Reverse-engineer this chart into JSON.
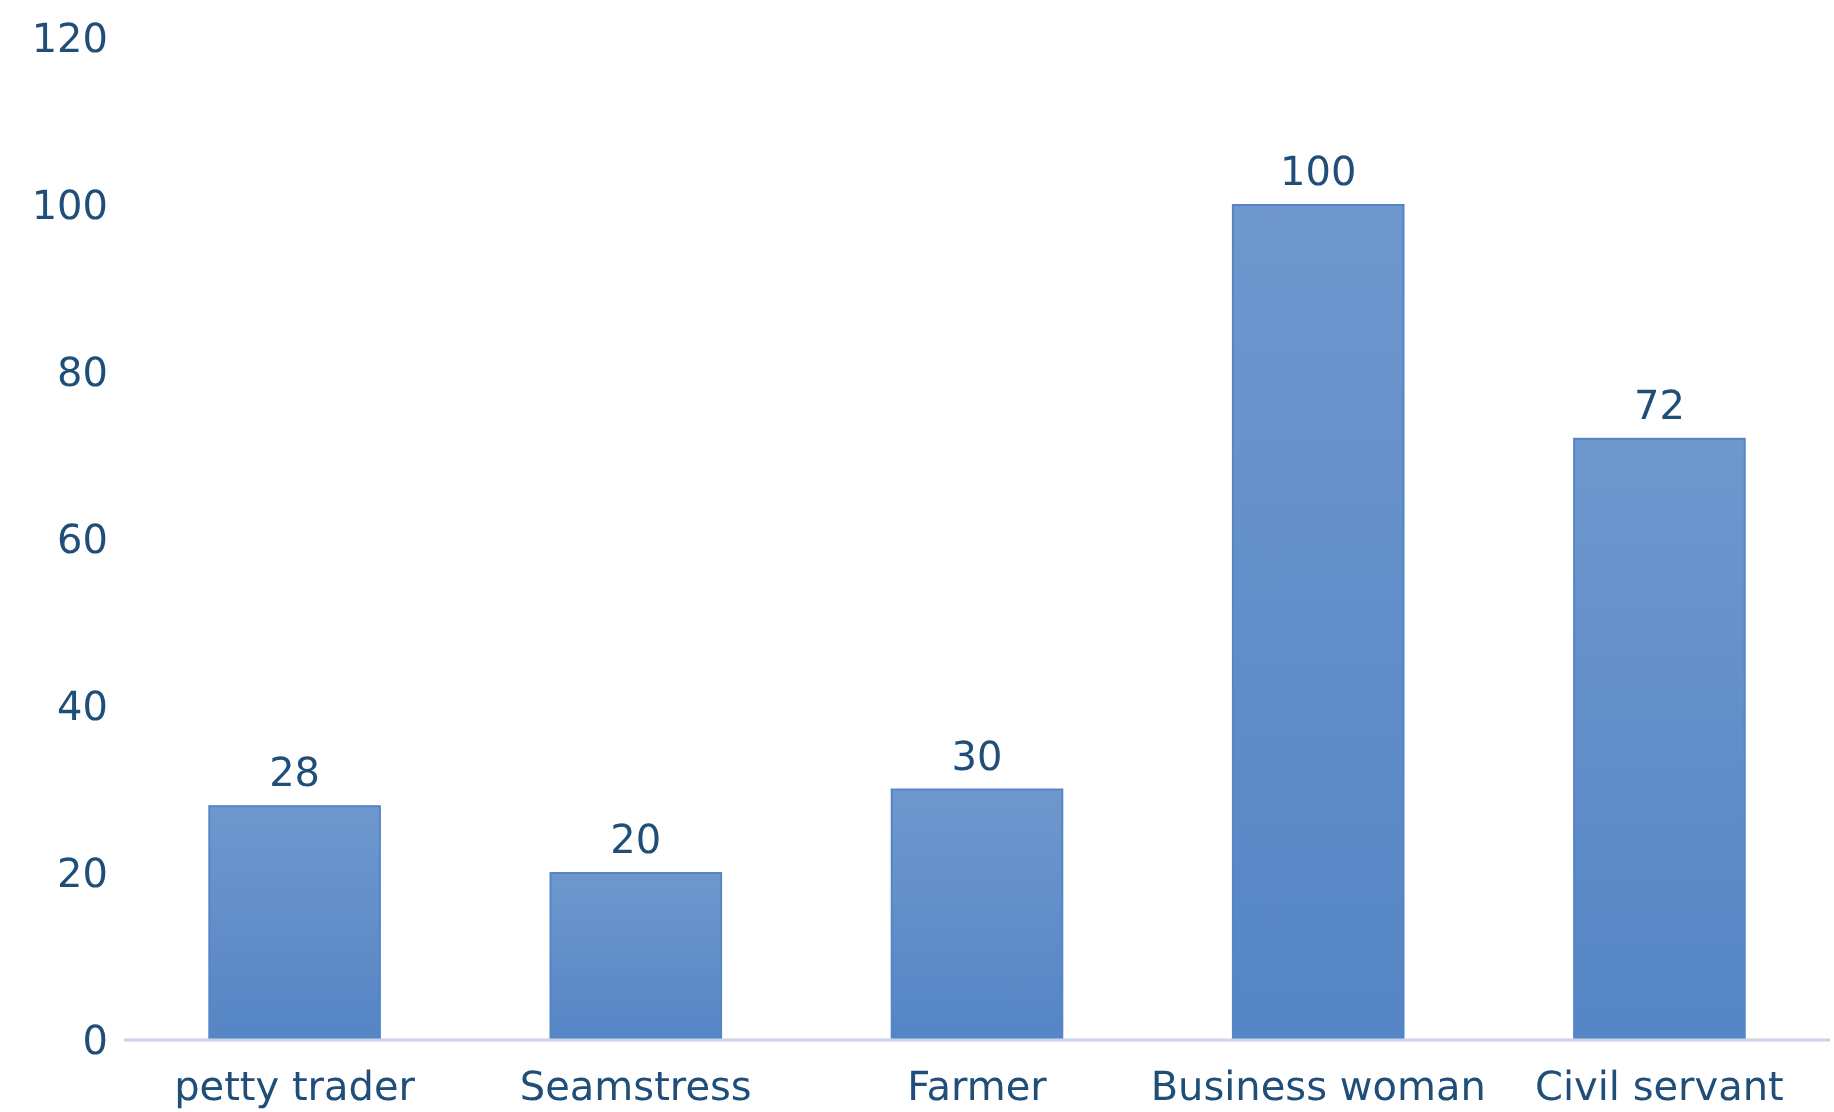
{
  "chart_data": {
    "type": "bar",
    "categories": [
      "petty trader",
      "Seamstress",
      "Farmer",
      "Business woman",
      "Civil servant"
    ],
    "values": [
      28,
      20,
      30,
      100,
      72
    ],
    "color": "#5585c5",
    "ylim": [
      0,
      120
    ],
    "yticks": [
      0,
      20,
      40,
      60,
      80,
      100,
      120
    ],
    "data_labels": true
  }
}
